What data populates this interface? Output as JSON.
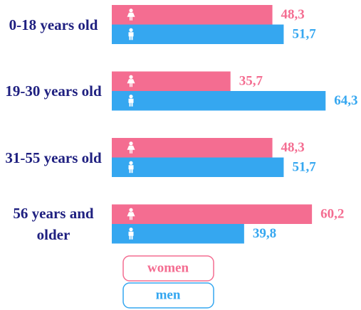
{
  "chart_data": {
    "type": "bar",
    "orientation": "horizontal",
    "categories": [
      "0-18 years old",
      "19-30 years old",
      "31-55 years old",
      "56 years and older"
    ],
    "series": [
      {
        "name": "women",
        "color": "#f46d91",
        "values": [
          48.3,
          35.7,
          48.3,
          60.2
        ],
        "value_labels": [
          "48,3",
          "35,7",
          "48,3",
          "60,2"
        ]
      },
      {
        "name": "men",
        "color": "#35a7f0",
        "values": [
          51.7,
          64.3,
          51.7,
          39.8
        ],
        "value_labels": [
          "51,7",
          "64,3",
          "51,7",
          "39,8"
        ]
      }
    ]
  }
}
